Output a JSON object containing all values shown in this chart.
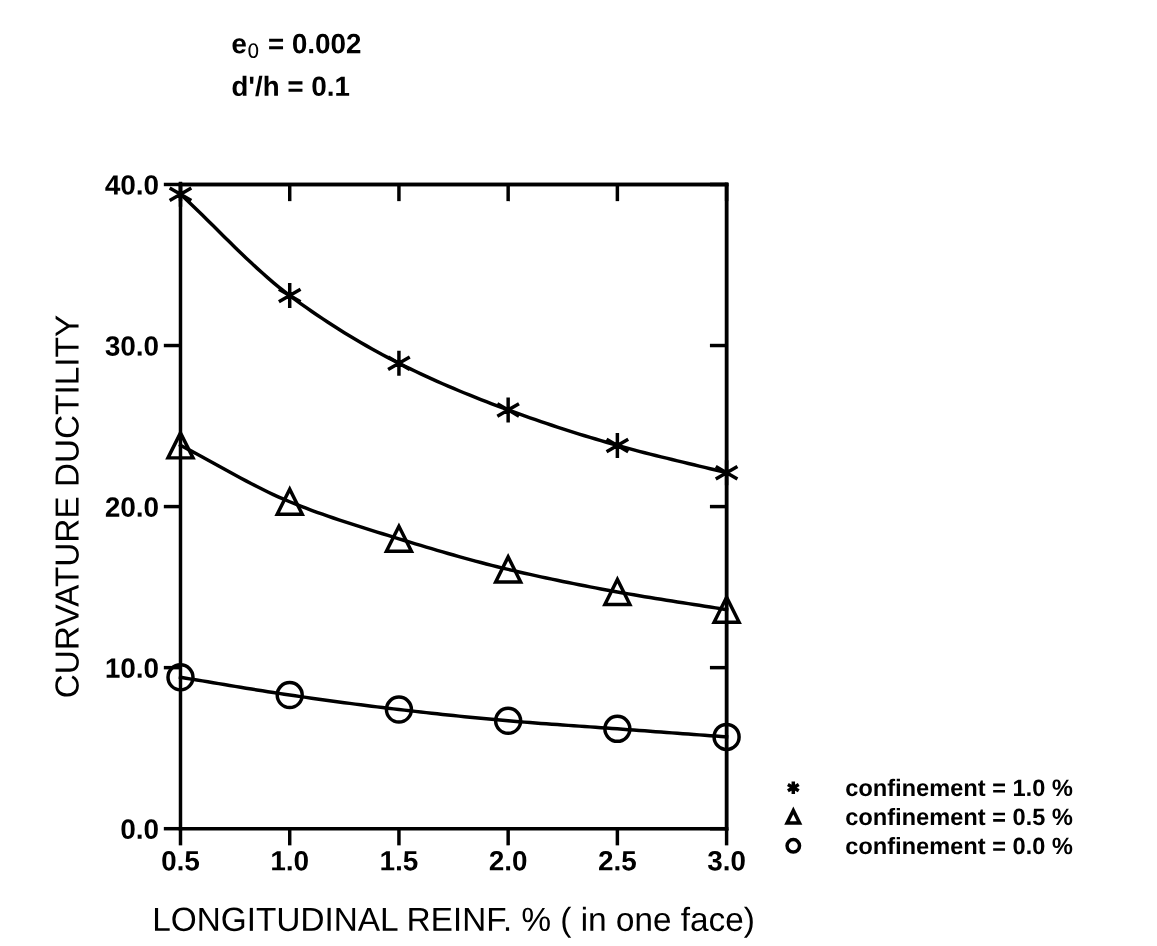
{
  "chart_data": {
    "type": "line",
    "xlabel": "LONGITUDINAL REINF. % ( in one face)",
    "ylabel": "CURVATURE DUCTILITY",
    "annotations": [
      "e$_{0}$ = 0.002",
      "d'/h = 0.1"
    ],
    "x": [
      0.5,
      1.0,
      1.5,
      2.0,
      2.5,
      3.0
    ],
    "series": [
      {
        "name": "confinement = 1.0 %",
        "color": "#000000",
        "marker": "cross",
        "values": [
          39.4,
          33.1,
          28.9,
          26.0,
          23.8,
          22.1
        ]
      },
      {
        "name": "confinement = 0.5 %",
        "color": "#000000",
        "marker": "triangle",
        "values": [
          23.8,
          20.3,
          18.0,
          16.1,
          14.7,
          13.6
        ]
      },
      {
        "name": "confinement = 0.0 %",
        "color": "#000000",
        "marker": "circle",
        "values": [
          9.4,
          8.3,
          7.4,
          6.7,
          6.2,
          5.7
        ]
      }
    ],
    "xlim": [
      0.5,
      3.0
    ],
    "xticks": [
      {
        "value": 0.5,
        "label": "0.5"
      },
      {
        "value": 1.0,
        "label": "1.0"
      },
      {
        "value": 1.5,
        "label": "1.5"
      },
      {
        "value": 2.0,
        "label": "2.0"
      },
      {
        "value": 2.5,
        "label": "2.5"
      },
      {
        "value": 3.0,
        "label": "3.0"
      }
    ],
    "ylim": [
      0,
      40
    ],
    "yticks": [
      {
        "value": 0,
        "label": "0.0"
      },
      {
        "value": 10,
        "label": "10.0"
      },
      {
        "value": 20,
        "label": "20.0"
      },
      {
        "value": 30,
        "label": "30.0"
      },
      {
        "value": 40,
        "label": "40.0"
      }
    ],
    "line_style": "solid",
    "grid": false,
    "legend": "bottom right"
  }
}
